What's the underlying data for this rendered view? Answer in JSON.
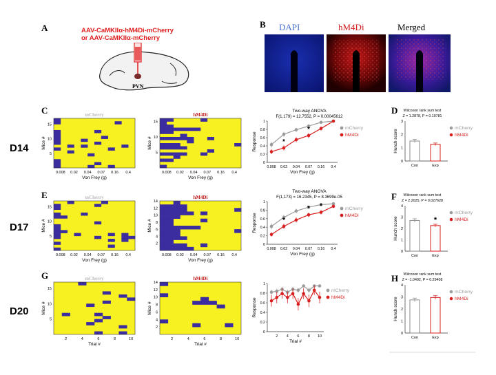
{
  "panels": {
    "A": {
      "letter": "A",
      "virus_line1": "AAV-CaMKIIα-hM4Di-mCherry",
      "virus_line2": "or AAV-CaMKIIα-mCherry",
      "region": "PVN",
      "colors": {
        "virus": "#e02020",
        "brain": "#f2f2f2"
      }
    },
    "B": {
      "letter": "B",
      "labels": [
        "DAPI",
        "hM4Di",
        "Merged"
      ],
      "label_colors": [
        "#4a6fd0",
        "#d02020",
        "#000000"
      ]
    }
  },
  "rows": [
    {
      "day": "D14",
      "heat_letter": "C",
      "stat_letter": "D",
      "heat_left_title": "mCherry",
      "heat_right_title": "hM4Di",
      "heat_xlabel": "Von Frey (g)",
      "heat_ylabel": "Mice #",
      "heat_xticks": [
        "0.008",
        "0.02",
        "0.04",
        "0.07",
        "0.16",
        "0.4"
      ],
      "left_yticks": [
        "5",
        "10",
        "15"
      ],
      "right_yticks": [
        "5",
        "10",
        "15"
      ],
      "line_title": "Two-way ANOVA",
      "line_stats": "F(1,179) = 12.7552, P = 0.00045612",
      "line_ylabel": "Response",
      "line_xlabel": "Von Frey (g)",
      "wilcox_title": "Wilcoxon rank sum test",
      "wilcox_stats": "Z = 1.2878, P = 0.19781",
      "bar_ylabel": "Hunch score",
      "bar_categories": [
        "Con",
        "Exp"
      ]
    },
    {
      "day": "D17",
      "heat_letter": "E",
      "stat_letter": "F",
      "heat_left_title": "mCherry",
      "heat_right_title": "hM4Di",
      "heat_xlabel": "Von Frey (g)",
      "heat_ylabel": "Mice #",
      "heat_xticks": [
        "0.008",
        "0.02",
        "0.04",
        "0.07",
        "0.16",
        "0.4"
      ],
      "left_yticks": [
        "5",
        "10",
        "15"
      ],
      "right_yticks": [
        "2",
        "4",
        "6",
        "8",
        "10",
        "12",
        "14"
      ],
      "line_title": "Two-way ANOVA",
      "line_stats": "F(1,173) = 16.2345, P = 8.3699e-05",
      "line_ylabel": "Response",
      "line_xlabel": "Von Frey (g)",
      "wilcox_title": "Wilcoxon rank sum test",
      "wilcox_stats": "Z = 2.2025, P = 0.027628",
      "bar_ylabel": "Hunch score",
      "bar_categories": [
        "Con",
        "Exp"
      ]
    },
    {
      "day": "D20",
      "heat_letter": "G",
      "stat_letter": "H",
      "heat_left_title": "mCherry",
      "heat_right_title": "hM4Di",
      "heat_xlabel": "Trial #",
      "heat_ylabel": "Mice #",
      "heat_xticks": [
        "2",
        "4",
        "6",
        "8",
        "10"
      ],
      "left_yticks": [
        "5",
        "10",
        "15"
      ],
      "right_yticks": [
        "2",
        "4",
        "6",
        "8",
        "10",
        "12",
        "14"
      ],
      "line_title": "",
      "line_stats": "",
      "line_ylabel": "Response",
      "line_xlabel": "Trial #",
      "wilcox_title": "Wilcoxon rank sum test",
      "wilcox_stats": "Z = -1.0492, P = 0.29408",
      "bar_ylabel": "Hunch score",
      "bar_categories": [
        "Con",
        "Exp"
      ]
    }
  ],
  "legend": {
    "series": [
      "mCherry",
      "hM4Di"
    ],
    "colors": [
      "#9a9a9a",
      "#d81e1e"
    ]
  },
  "heat_colors": {
    "hit": "#3b2ca0",
    "miss": "#f7f122"
  },
  "chart_data": [
    {
      "type": "line",
      "title": "Two-way ANOVA",
      "categories": [
        "0.008",
        "0.02",
        "0.04",
        "0.07",
        "0.16",
        "0.4"
      ],
      "ylim": [
        0,
        1
      ],
      "yticks": [
        "0",
        "0.2",
        "0.4",
        "0.6",
        "0.8",
        "1"
      ],
      "xlabel": "Von Frey (g)",
      "ylabel": "Response",
      "significance": [
        "",
        "*",
        "",
        "*",
        "",
        ""
      ],
      "series": [
        {
          "name": "mCherry",
          "values": [
            0.43,
            0.68,
            0.79,
            0.88,
            0.97,
            1.0
          ],
          "err": [
            0.07,
            0.06,
            0.05,
            0.04,
            0.02,
            0.0
          ]
        },
        {
          "name": "hM4Di",
          "values": [
            0.26,
            0.35,
            0.55,
            0.65,
            0.82,
            1.0
          ],
          "err": [
            0.06,
            0.06,
            0.06,
            0.06,
            0.05,
            0.0
          ]
        }
      ]
    },
    {
      "type": "line",
      "title": "Two-way ANOVA",
      "categories": [
        "0.008",
        "0.02",
        "0.04",
        "0.07",
        "0.16",
        "0.4"
      ],
      "ylim": [
        0,
        1
      ],
      "yticks": [
        "0",
        "0.2",
        "0.4",
        "0.6",
        "0.8",
        "1"
      ],
      "xlabel": "Von Frey (g)",
      "ylabel": "Response",
      "significance": [
        "",
        "*",
        "",
        "*",
        "*",
        ""
      ],
      "series": [
        {
          "name": "mCherry",
          "values": [
            0.42,
            0.63,
            0.78,
            0.87,
            0.93,
            0.95
          ],
          "err": [
            0.07,
            0.06,
            0.05,
            0.04,
            0.03,
            0.02
          ]
        },
        {
          "name": "hM4Di",
          "values": [
            0.23,
            0.42,
            0.57,
            0.69,
            0.75,
            0.89
          ],
          "err": [
            0.05,
            0.06,
            0.06,
            0.05,
            0.05,
            0.04
          ]
        }
      ]
    },
    {
      "type": "line",
      "title": "",
      "categories": [
        "1",
        "2",
        "3",
        "4",
        "5",
        "6",
        "7",
        "8",
        "9",
        "10"
      ],
      "ylim": [
        0,
        1
      ],
      "yticks": [
        "0",
        "0.2",
        "0.4",
        "0.6",
        "0.8",
        "1"
      ],
      "xtick_labels": [
        "2",
        "4",
        "6",
        "8",
        "10"
      ],
      "xlabel": "Trial #",
      "ylabel": "Response",
      "significance": [],
      "series": [
        {
          "name": "mCherry",
          "values": [
            0.82,
            0.84,
            0.88,
            0.82,
            0.88,
            0.86,
            0.95,
            0.86,
            0.95,
            0.95
          ],
          "err": [
            0.05,
            0.05,
            0.05,
            0.05,
            0.05,
            0.05,
            0.03,
            0.05,
            0.03,
            0.03
          ]
        },
        {
          "name": "hM4Di",
          "values": [
            0.64,
            0.71,
            0.79,
            0.71,
            0.79,
            0.57,
            0.79,
            0.64,
            0.86,
            0.71
          ],
          "err": [
            0.12,
            0.12,
            0.11,
            0.12,
            0.11,
            0.13,
            0.11,
            0.13,
            0.1,
            0.12
          ]
        }
      ]
    },
    {
      "type": "bar",
      "title": "Wilcoxon rank sum test",
      "categories": [
        "Con",
        "Exp"
      ],
      "values": [
        1.5,
        1.25
      ],
      "err": [
        0.12,
        0.1
      ],
      "ylim": [
        0,
        3
      ],
      "yticks": [
        "0",
        "1",
        "2",
        "3"
      ],
      "ylabel": "Hunch score",
      "significance": [
        "",
        ""
      ]
    },
    {
      "type": "bar",
      "title": "Wilcoxon rank sum test",
      "categories": [
        "Con",
        "Exp"
      ],
      "values": [
        2.7,
        2.25
      ],
      "err": [
        0.15,
        0.12
      ],
      "ylim": [
        0,
        4
      ],
      "yticks": [
        "0",
        "1",
        "2",
        "3",
        "4"
      ],
      "ylabel": "Hunch score",
      "significance": [
        "",
        "*"
      ]
    },
    {
      "type": "bar",
      "title": "Wilcoxon rank sum test",
      "categories": [
        "Con",
        "Exp"
      ],
      "values": [
        2.75,
        2.95
      ],
      "err": [
        0.15,
        0.15
      ],
      "ylim": [
        0,
        4
      ],
      "yticks": [
        "0",
        "1",
        "2",
        "3",
        "4"
      ],
      "ylabel": "Hunch score",
      "significance": [
        "",
        ""
      ]
    }
  ]
}
